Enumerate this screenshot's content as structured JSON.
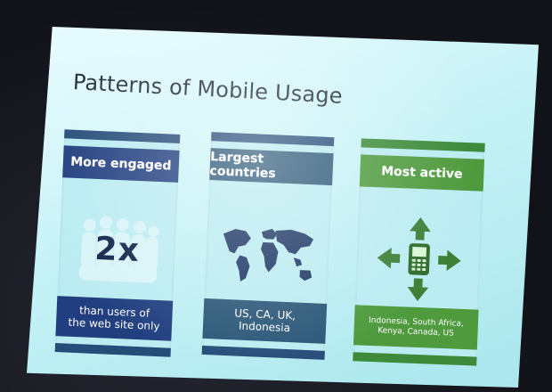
{
  "slide": {
    "title": "Patterns of Mobile Usage"
  },
  "panels": [
    {
      "header": "More engaged",
      "figure": "2x",
      "footer_lines": [
        "than users of",
        "the web site only"
      ],
      "icon": "people-silhouette-icon",
      "accent": "#213f7f"
    },
    {
      "header": "Largest countries",
      "footer_lines": [
        "US, CA, UK,",
        "Indonesia"
      ],
      "icon": "world-map-icon",
      "accent": "#2a5677"
    },
    {
      "header": "Most active",
      "footer_lines": [
        "Indonesia, South Africa,",
        "Kenya, Canada, US"
      ],
      "icon": "mobile-phone-arrows-icon",
      "accent": "#4e9a3d"
    }
  ]
}
